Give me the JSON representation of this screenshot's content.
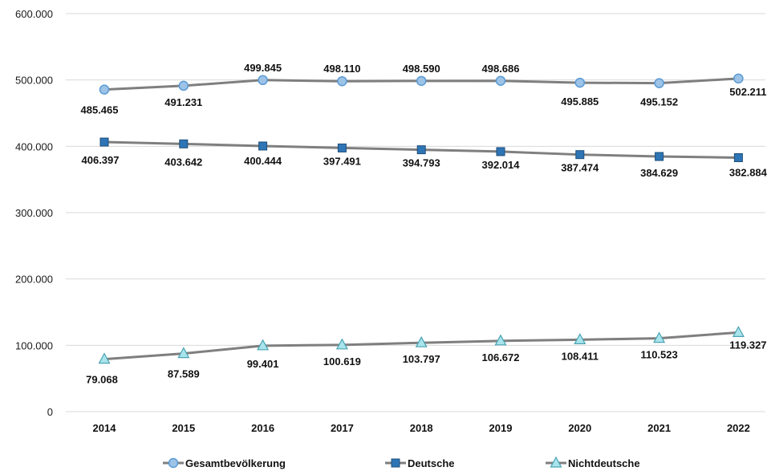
{
  "chart_data": {
    "type": "line",
    "categories": [
      "2014",
      "2015",
      "2016",
      "2017",
      "2018",
      "2019",
      "2020",
      "2021",
      "2022"
    ],
    "ylim": [
      0,
      600000
    ],
    "yticks": [
      0,
      100000,
      200000,
      300000,
      400000,
      500000,
      600000
    ],
    "ytick_labels": [
      "0",
      "100.000",
      "200.000",
      "300.000",
      "400.000",
      "500.000",
      "600.000"
    ],
    "grid": "horizontal",
    "legend_position": "bottom",
    "series": [
      {
        "name": "Gesamtbevölkerung",
        "marker": "circle",
        "marker_fill": "#9dc3e6",
        "marker_stroke": "#5b9bd5",
        "line_color": "#7f7f7f",
        "values": [
          485465,
          491231,
          499845,
          498110,
          498590,
          498686,
          495885,
          495152,
          502211
        ],
        "labels": [
          "485.465",
          "491.231",
          "499.845",
          "498.110",
          "498.590",
          "498.686",
          "495.885",
          "495.152",
          "502.211"
        ]
      },
      {
        "name": "Deutsche",
        "marker": "square",
        "marker_fill": "#2e75b6",
        "marker_stroke": "#1f4e79",
        "line_color": "#7f7f7f",
        "values": [
          406397,
          403642,
          400444,
          397491,
          394793,
          392014,
          387474,
          384629,
          382884
        ],
        "labels": [
          "406.397",
          "403.642",
          "400.444",
          "397.491",
          "394.793",
          "392.014",
          "387.474",
          "384.629",
          "382.884"
        ]
      },
      {
        "name": "Nichtdeutsche",
        "marker": "triangle",
        "marker_fill": "#a9e4ec",
        "marker_stroke": "#4aa3b3",
        "line_color": "#7f7f7f",
        "values": [
          79068,
          87589,
          99401,
          100619,
          103797,
          106672,
          108411,
          110523,
          119327
        ],
        "labels": [
          "79.068",
          "87.589",
          "99.401",
          "100.619",
          "103.797",
          "106.672",
          "108.411",
          "110.523",
          "119.327"
        ]
      }
    ]
  }
}
